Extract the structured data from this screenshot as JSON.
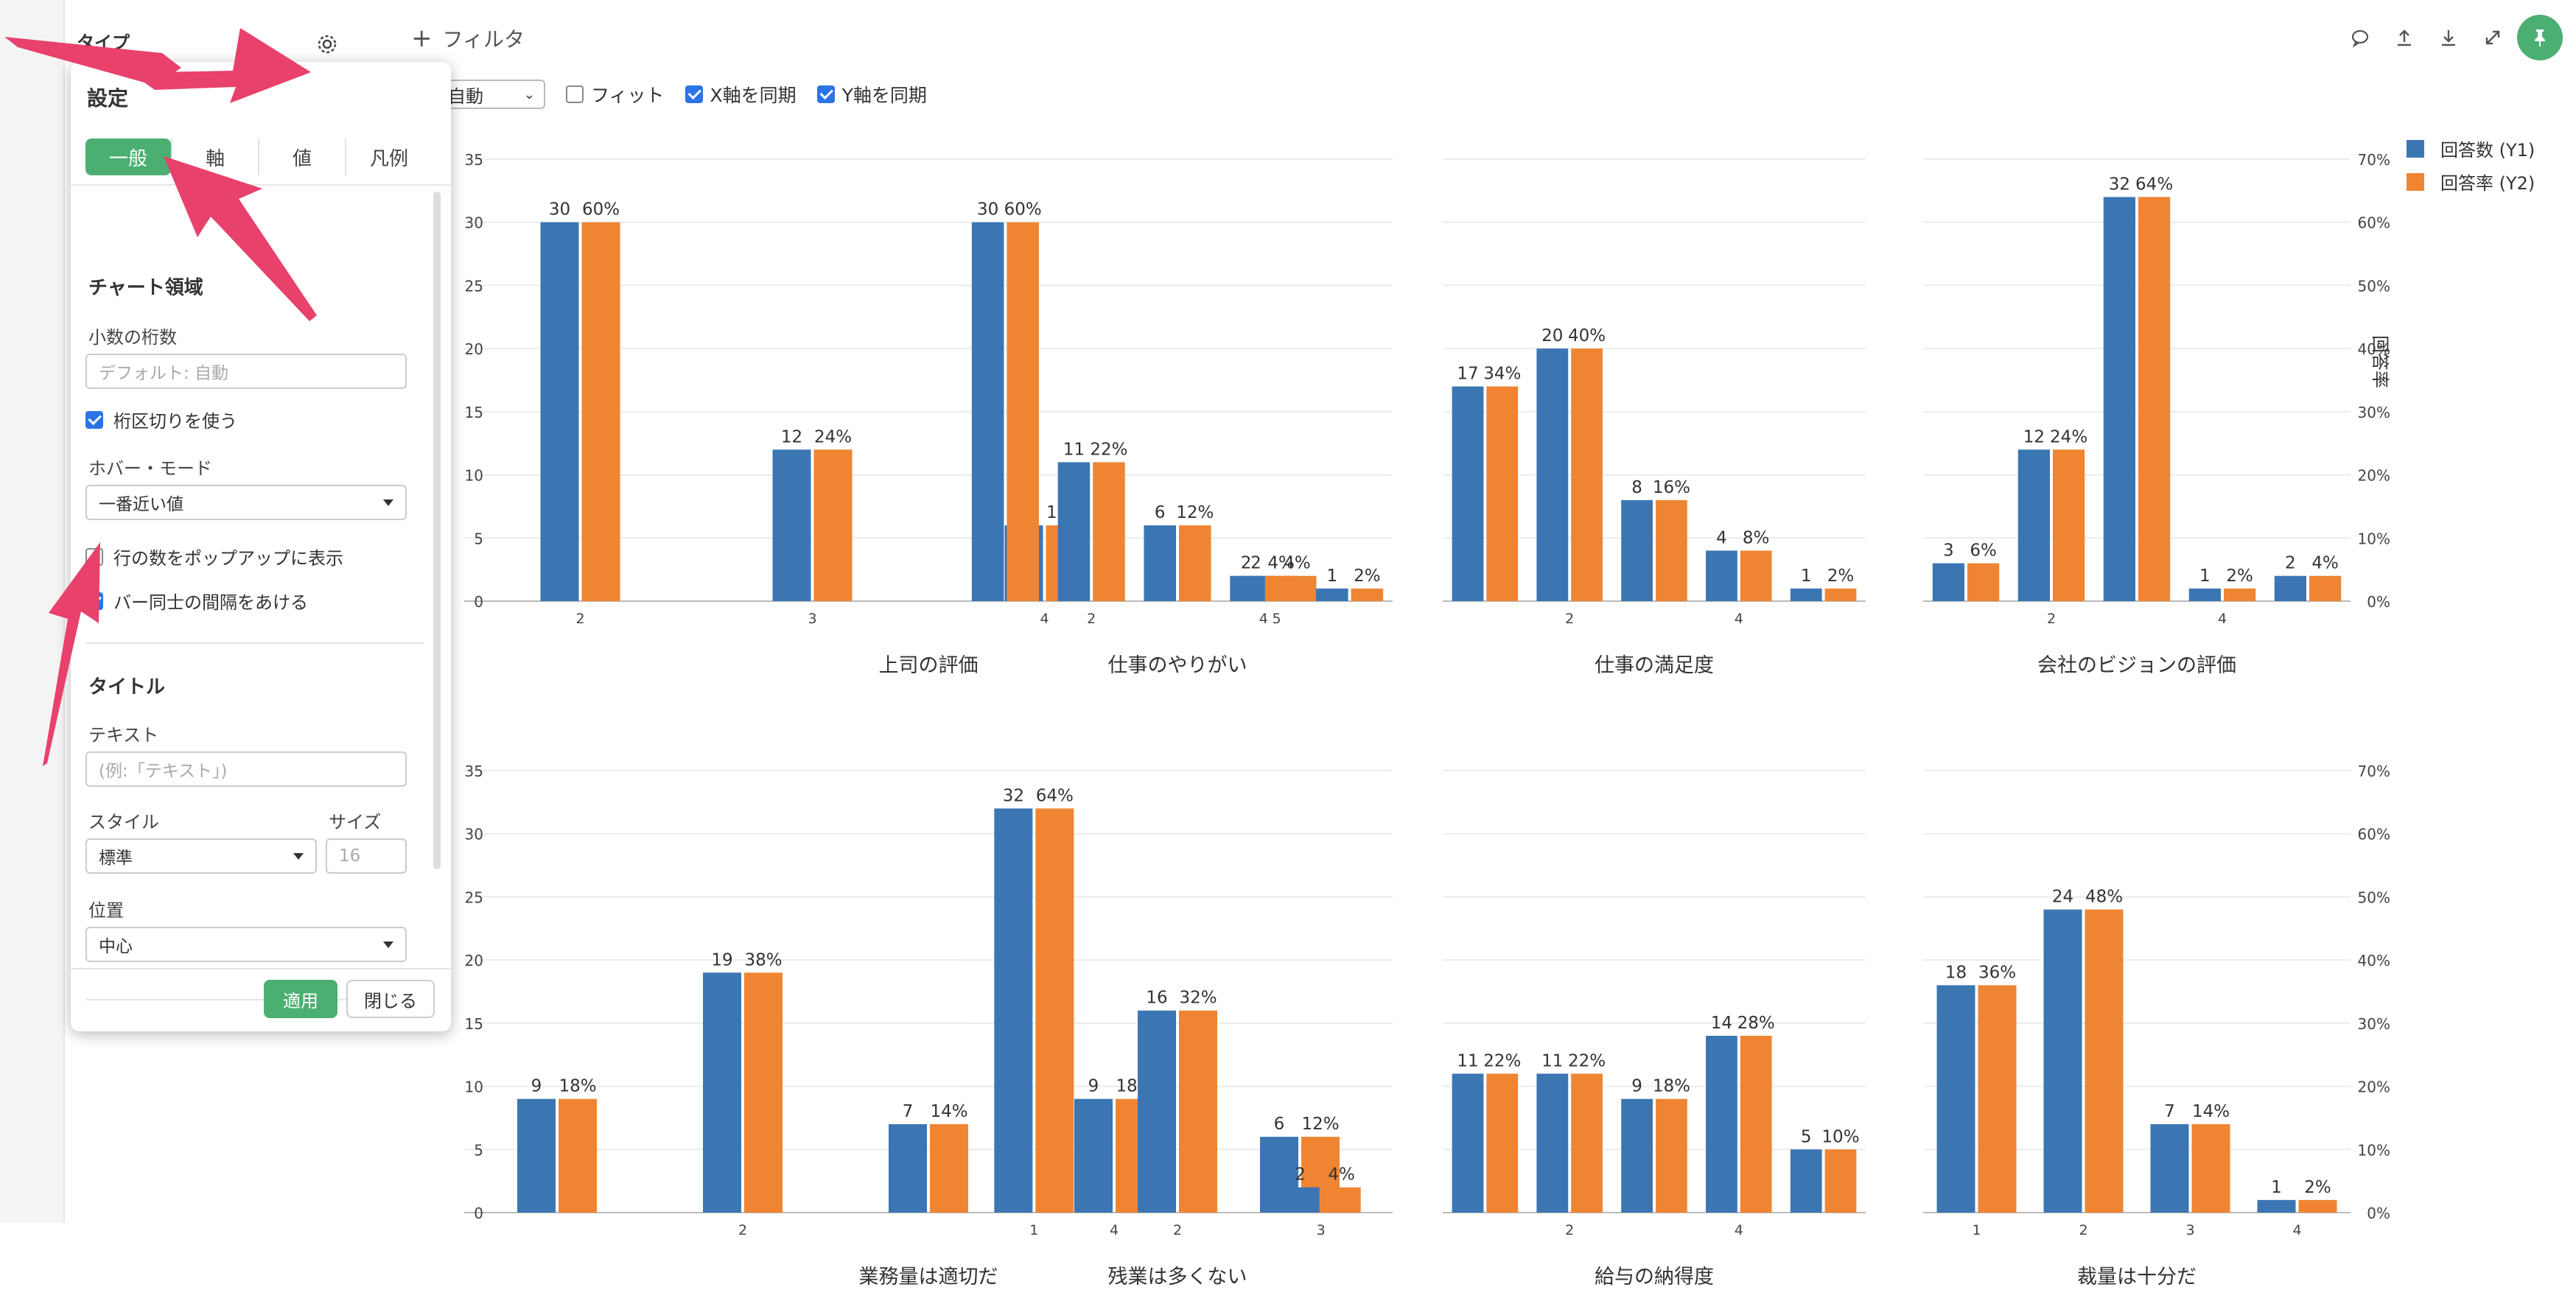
{
  "toolbar": {
    "type_label": "タイプ",
    "filter_label": "フィルタ",
    "mode_value": "自動",
    "fit_label": "フィット",
    "sync_x_label": "X軸を同期",
    "sync_y_label": "Y軸を同期",
    "fit_checked": false,
    "sync_x_checked": true,
    "sync_y_checked": true,
    "icons": [
      "comment-icon",
      "upload-icon",
      "download-icon",
      "expand-icon",
      "pin-icon"
    ]
  },
  "legend": {
    "items": [
      {
        "label": "回答数 (Y1)",
        "color": "#3b76b3"
      },
      {
        "label": "回答率 (Y2)",
        "color": "#ef8533"
      }
    ],
    "y2_title": "回答率"
  },
  "settings": {
    "title": "設定",
    "tabs": [
      "一般",
      "軸",
      "値",
      "凡例"
    ],
    "active_tab": "一般",
    "chart_section": "チャート領域",
    "decimals_label": "小数の桁数",
    "decimals_placeholder": "デフォルト: 自動",
    "thousands_label": "桁区切りを使う",
    "thousands_checked": true,
    "hover_label": "ホバー・モード",
    "hover_value": "一番近い値",
    "popup_rows_label": "行の数をポップアップに表示",
    "popup_rows_checked": false,
    "bar_gap_label": "バー同士の間隔をあける",
    "bar_gap_checked": true,
    "title_section": "タイトル",
    "text_label": "テキスト",
    "text_placeholder": "(例:「テキスト」)",
    "style_label": "スタイル",
    "style_value": "標準",
    "size_label": "サイズ",
    "size_placeholder": "16",
    "position_label": "位置",
    "position_value": "中心",
    "apply_label": "適用",
    "close_label": "閉じる"
  },
  "chart_data": [
    {
      "type": "bar",
      "title": "上司の評価",
      "categories": [
        "2",
        "3",
        "4",
        "5"
      ],
      "x_ticks": [
        "2",
        "3",
        "4",
        "5"
      ],
      "series": [
        {
          "name": "回答数 (Y1)",
          "values": [
            30,
            12,
            6,
            2
          ]
        },
        {
          "name": "回答率 (Y2)",
          "values": [
            60,
            24,
            12,
            4
          ],
          "unit": "%"
        }
      ],
      "ylim": [
        0,
        35
      ],
      "y2lim": [
        0,
        70
      ]
    },
    {
      "type": "bar",
      "title": "仕事のやりがい",
      "categories": [
        "1",
        "2",
        "3",
        "4",
        "5"
      ],
      "x_ticks": [
        "",
        "2",
        "",
        "4",
        ""
      ],
      "series": [
        {
          "name": "回答数 (Y1)",
          "values": [
            30,
            11,
            6,
            2,
            1
          ]
        },
        {
          "name": "回答率 (Y2)",
          "values": [
            60,
            22,
            12,
            4,
            2
          ],
          "unit": "%"
        }
      ],
      "ylim": [
        0,
        35
      ],
      "y2lim": [
        0,
        70
      ]
    },
    {
      "type": "bar",
      "title": "仕事の満足度",
      "categories": [
        "1",
        "2",
        "3",
        "4",
        "5"
      ],
      "x_ticks": [
        "",
        "2",
        "",
        "4",
        ""
      ],
      "series": [
        {
          "name": "回答数 (Y1)",
          "values": [
            17,
            20,
            8,
            4,
            1
          ]
        },
        {
          "name": "回答率 (Y2)",
          "values": [
            34,
            40,
            16,
            8,
            2
          ],
          "unit": "%"
        }
      ],
      "ylim": [
        0,
        35
      ],
      "y2lim": [
        0,
        70
      ]
    },
    {
      "type": "bar",
      "title": "会社のビジョンの評価",
      "categories": [
        "1",
        "2",
        "3",
        "4",
        "5"
      ],
      "x_ticks": [
        "",
        "2",
        "",
        "4",
        ""
      ],
      "series": [
        {
          "name": "回答数 (Y1)",
          "values": [
            3,
            12,
            32,
            1,
            2
          ]
        },
        {
          "name": "回答率 (Y2)",
          "values": [
            6,
            24,
            64,
            2,
            4
          ],
          "unit": "%"
        }
      ],
      "ylim": [
        0,
        35
      ],
      "y2lim": [
        0,
        70
      ]
    },
    {
      "type": "bar",
      "title": "業務量は適切だ",
      "categories": [
        "1",
        "2",
        "3",
        "4",
        "5"
      ],
      "x_ticks": [
        "",
        "2",
        "",
        "4",
        ""
      ],
      "series": [
        {
          "name": "回答数 (Y1)",
          "values": [
            9,
            19,
            7,
            9,
            6
          ]
        },
        {
          "name": "回答率 (Y2)",
          "values": [
            18,
            38,
            14,
            18,
            12
          ],
          "unit": "%"
        }
      ],
      "ylim": [
        0,
        35
      ],
      "y2lim": [
        0,
        70
      ]
    },
    {
      "type": "bar",
      "title": "残業は多くない",
      "categories": [
        "1",
        "2",
        "3"
      ],
      "x_ticks": [
        "1",
        "2",
        "3"
      ],
      "series": [
        {
          "name": "回答数 (Y1)",
          "values": [
            32,
            16,
            2
          ]
        },
        {
          "name": "回答率 (Y2)",
          "values": [
            64,
            32,
            4
          ],
          "unit": "%"
        }
      ],
      "ylim": [
        0,
        35
      ],
      "y2lim": [
        0,
        70
      ]
    },
    {
      "type": "bar",
      "title": "給与の納得度",
      "categories": [
        "1",
        "2",
        "3",
        "4",
        "5"
      ],
      "x_ticks": [
        "",
        "2",
        "",
        "4",
        ""
      ],
      "series": [
        {
          "name": "回答数 (Y1)",
          "values": [
            11,
            11,
            9,
            14,
            5
          ]
        },
        {
          "name": "回答率 (Y2)",
          "values": [
            22,
            22,
            18,
            28,
            10
          ],
          "unit": "%"
        }
      ],
      "ylim": [
        0,
        35
      ],
      "y2lim": [
        0,
        70
      ]
    },
    {
      "type": "bar",
      "title": "裁量は十分だ",
      "categories": [
        "1",
        "2",
        "3",
        "4"
      ],
      "x_ticks": [
        "1",
        "2",
        "3",
        "4"
      ],
      "series": [
        {
          "name": "回答数 (Y1)",
          "values": [
            18,
            24,
            7,
            1
          ]
        },
        {
          "name": "回答率 (Y2)",
          "values": [
            36,
            48,
            14,
            2
          ],
          "unit": "%"
        }
      ],
      "ylim": [
        0,
        35
      ],
      "y2lim": [
        0,
        70
      ]
    }
  ],
  "axis": {
    "y1_ticks": [
      0,
      5,
      10,
      15,
      20,
      25,
      30,
      35
    ],
    "y2_ticks": [
      "0%",
      "10%",
      "20%",
      "30%",
      "40%",
      "50%",
      "60%",
      "70%"
    ]
  },
  "colors": {
    "y1": "#3b76b3",
    "y2": "#ef8533",
    "accent": "#4caf72",
    "annotation": "#e8416b"
  }
}
